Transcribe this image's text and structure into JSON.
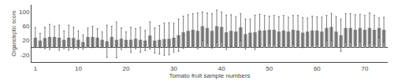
{
  "chart_data": {
    "type": "bar",
    "xlabel": "Tomato fruit sample numbers",
    "ylabel": "Organoleptic score",
    "x": [
      1,
      2,
      3,
      4,
      5,
      6,
      7,
      8,
      9,
      10,
      11,
      12,
      13,
      14,
      15,
      16,
      17,
      18,
      19,
      20,
      21,
      22,
      23,
      24,
      25,
      26,
      27,
      28,
      29,
      30,
      31,
      32,
      33,
      34,
      35,
      36,
      37,
      38,
      39,
      40,
      41,
      42,
      43,
      44,
      45,
      46,
      47,
      48,
      49,
      50,
      51,
      52,
      53,
      54,
      55,
      56,
      57,
      58,
      59,
      60,
      61,
      62,
      63,
      64,
      65,
      66,
      67,
      68,
      69,
      70,
      71,
      72,
      73,
      74
    ],
    "values": [
      28,
      20,
      27,
      30,
      30,
      28,
      22,
      28,
      27,
      22,
      16,
      30,
      30,
      28,
      22,
      18,
      30,
      22,
      25,
      22,
      22,
      25,
      22,
      20,
      34,
      20,
      22,
      24,
      25,
      28,
      35,
      43,
      47,
      50,
      47,
      60,
      55,
      47,
      60,
      58,
      43,
      47,
      45,
      57,
      38,
      42,
      43,
      48,
      48,
      50,
      50,
      45,
      48,
      45,
      50,
      48,
      42,
      45,
      48,
      48,
      45,
      55,
      58,
      45,
      35,
      55,
      55,
      50,
      55,
      50,
      55,
      50,
      55,
      50
    ],
    "errors": [
      28,
      20,
      30,
      35,
      30,
      35,
      25,
      35,
      30,
      25,
      20,
      25,
      30,
      25,
      22,
      45,
      30,
      50,
      30,
      22,
      35,
      28,
      35,
      28,
      38,
      35,
      40,
      45,
      45,
      40,
      45,
      45,
      45,
      45,
      50,
      40,
      42,
      48,
      45,
      42,
      48,
      45,
      42,
      38,
      42,
      38,
      48,
      45,
      42,
      38,
      40,
      42,
      42,
      40,
      40,
      42,
      42,
      38,
      40,
      38,
      40,
      35,
      38,
      42,
      45,
      40,
      40,
      42,
      38,
      40,
      42,
      40,
      28,
      35
    ],
    "color": "#909090",
    "xlim": [
      0.2,
      74.8
    ],
    "xticks": [
      1,
      10,
      20,
      30,
      40,
      50,
      60,
      70
    ],
    "ylim": [
      -40,
      120
    ],
    "yticks": [
      -20,
      20,
      60,
      100
    ],
    "grid": false
  }
}
